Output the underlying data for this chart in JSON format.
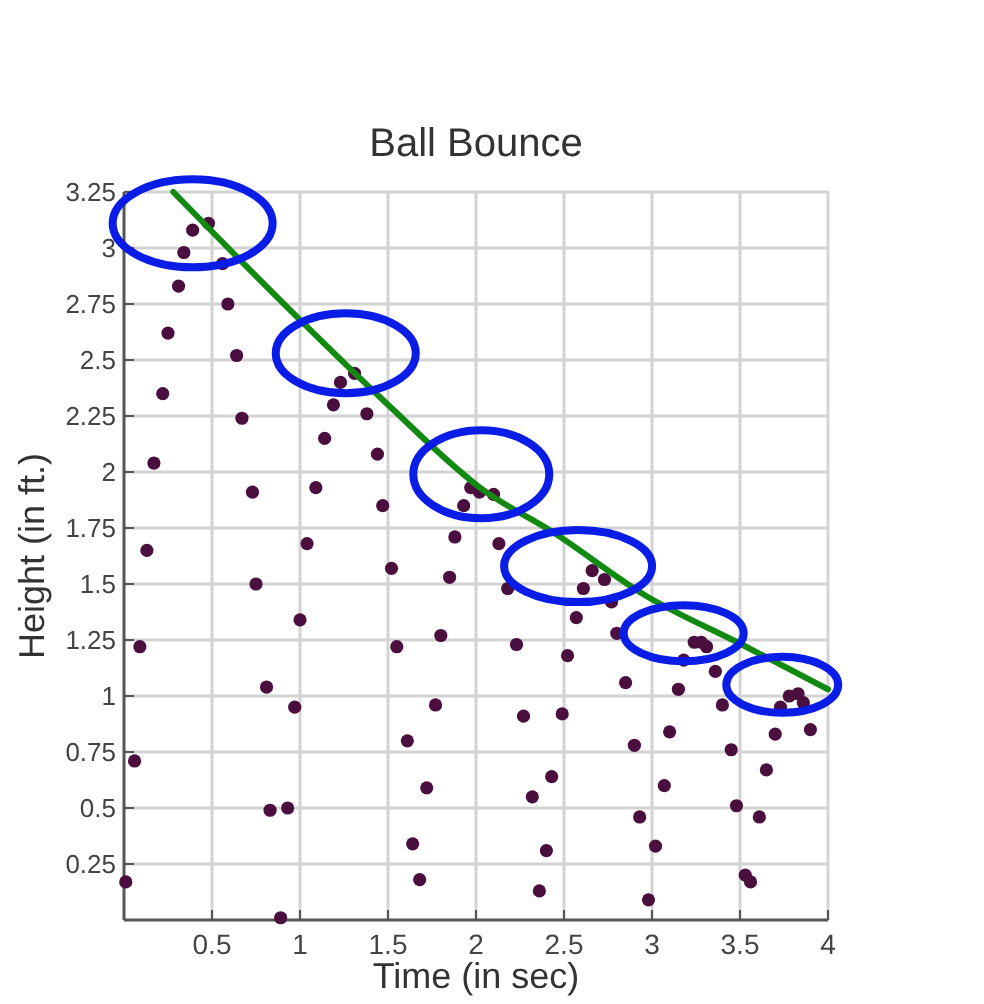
{
  "chart_data": {
    "type": "scatter",
    "title": "Ball Bounce",
    "xlabel": "Time (in sec)",
    "ylabel": "Height (in ft.)",
    "xlim": [
      0,
      4
    ],
    "ylim": [
      0,
      3.25
    ],
    "xticks": [
      0.5,
      1,
      1.5,
      2,
      2.5,
      3,
      3.5,
      4
    ],
    "yticks": [
      0.25,
      0.5,
      0.75,
      1,
      1.25,
      1.5,
      1.75,
      2,
      2.25,
      2.5,
      2.75,
      3,
      3.25
    ],
    "grid": true,
    "series": [
      {
        "color": "#4b0f3f",
        "marker": "circle",
        "x": [
          0.01,
          0.06,
          0.09,
          0.13,
          0.17,
          0.22,
          0.25,
          0.31,
          0.34,
          0.39,
          0.48,
          0.56,
          0.59,
          0.64,
          0.67,
          0.73,
          0.75,
          0.81,
          0.83,
          0.89,
          0.93,
          0.97,
          1.0,
          1.04,
          1.09,
          1.14,
          1.19,
          1.23,
          1.31,
          1.38,
          1.44,
          1.47,
          1.52,
          1.55,
          1.61,
          1.64,
          1.68,
          1.72,
          1.77,
          1.8,
          1.85,
          1.88,
          1.93,
          1.97,
          2.02,
          2.1,
          2.13,
          2.18,
          2.23,
          2.27,
          2.32,
          2.36,
          2.4,
          2.43,
          2.49,
          2.52,
          2.57,
          2.61,
          2.66,
          2.73,
          2.77,
          2.8,
          2.85,
          2.9,
          2.93,
          2.98,
          3.02,
          3.07,
          3.1,
          3.15,
          3.18,
          3.24,
          3.28,
          3.31,
          3.36,
          3.4,
          3.45,
          3.48,
          3.53,
          3.56,
          3.61,
          3.65,
          3.7,
          3.73,
          3.78,
          3.83,
          3.86,
          3.9
        ],
        "values": [
          0.17,
          0.71,
          1.22,
          1.65,
          2.04,
          2.35,
          2.62,
          2.83,
          2.98,
          3.08,
          3.11,
          2.93,
          2.75,
          2.52,
          2.24,
          1.91,
          1.5,
          1.04,
          0.49,
          0.01,
          0.5,
          0.95,
          1.34,
          1.68,
          1.93,
          2.15,
          2.3,
          2.4,
          2.44,
          2.26,
          2.08,
          1.85,
          1.57,
          1.22,
          0.8,
          0.34,
          0.18,
          0.59,
          0.96,
          1.27,
          1.53,
          1.71,
          1.85,
          1.93,
          1.91,
          1.9,
          1.68,
          1.48,
          1.23,
          0.91,
          0.55,
          0.13,
          0.31,
          0.64,
          0.92,
          1.18,
          1.35,
          1.48,
          1.56,
          1.52,
          1.42,
          1.28,
          1.06,
          0.78,
          0.46,
          0.09,
          0.33,
          0.6,
          0.84,
          1.03,
          1.16,
          1.24,
          1.24,
          1.22,
          1.11,
          0.96,
          0.76,
          0.51,
          0.2,
          0.17,
          0.46,
          0.67,
          0.83,
          0.95,
          1.0,
          1.01,
          0.97,
          0.85
        ]
      },
      {
        "type": "line",
        "color": "#128a12",
        "marker": "none",
        "x": [
          0.28,
          0.96,
          1.5,
          2.04,
          2.44,
          2.96,
          3.51,
          4
        ],
        "values": [
          3.25,
          2.71,
          2.3,
          1.92,
          1.73,
          1.45,
          1.23,
          1.03
        ]
      }
    ]
  }
}
